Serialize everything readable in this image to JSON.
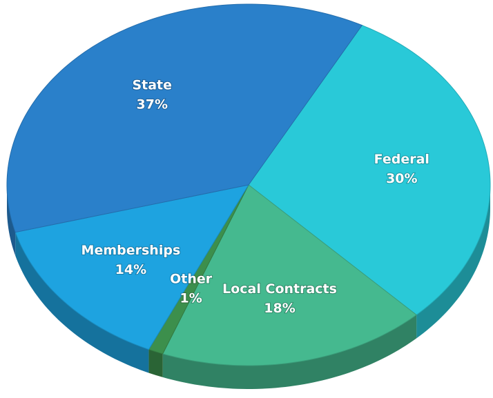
{
  "chart_data": {
    "type": "pie",
    "categories": [
      "Federal",
      "Local Contracts",
      "Other",
      "Memberships",
      "State"
    ],
    "values": [
      30,
      18,
      1,
      14,
      37
    ],
    "value_labels": [
      "30%",
      "18%",
      "1%",
      "14%",
      "37%"
    ],
    "colors": [
      "#29c9d8",
      "#45b98f",
      "#3c8f4c",
      "#1ea3e0",
      "#2a80ca"
    ]
  }
}
